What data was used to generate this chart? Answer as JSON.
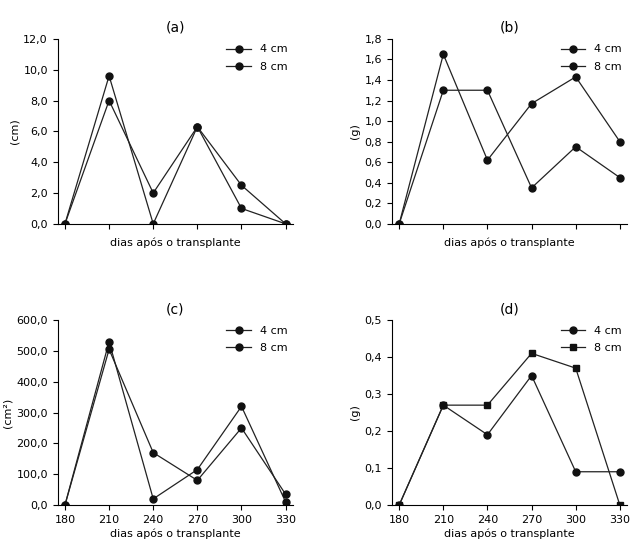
{
  "x_ticks": [
    180,
    210,
    240,
    270,
    300,
    330
  ],
  "subplot_a": {
    "title": "(a)",
    "ylabel": "(cm)",
    "xlabel": "dias após o transplante",
    "show_xticklabels": false,
    "series": [
      {
        "label": "4 cm",
        "x": [
          180,
          210,
          240,
          270,
          300,
          330
        ],
        "y": [
          0.0,
          9.6,
          0.0,
          6.3,
          1.0,
          0.0
        ],
        "marker": "o"
      },
      {
        "label": "8 cm",
        "x": [
          180,
          210,
          240,
          270,
          300,
          330
        ],
        "y": [
          0.0,
          8.0,
          2.0,
          6.3,
          2.5,
          0.0
        ],
        "marker": "o"
      }
    ],
    "ylim": [
      0.0,
      12.0
    ],
    "yticks": [
      0.0,
      2.0,
      4.0,
      6.0,
      8.0,
      10.0,
      12.0
    ],
    "ydecimals": 1
  },
  "subplot_b": {
    "title": "(b)",
    "ylabel": "(g)",
    "xlabel": "dias após o transplante",
    "show_xticklabels": false,
    "series": [
      {
        "label": "4 cm",
        "x": [
          180,
          210,
          240,
          270,
          300,
          330
        ],
        "y": [
          0.0,
          1.65,
          0.62,
          1.17,
          1.43,
          0.8
        ],
        "marker": "o"
      },
      {
        "label": "8 cm",
        "x": [
          180,
          210,
          240,
          270,
          300,
          330
        ],
        "y": [
          0.0,
          1.3,
          1.3,
          0.35,
          0.75,
          0.45
        ],
        "marker": "o"
      }
    ],
    "ylim": [
      0.0,
      1.8
    ],
    "yticks": [
      0.0,
      0.2,
      0.4,
      0.6,
      0.8,
      1.0,
      1.2,
      1.4,
      1.6,
      1.8
    ],
    "ydecimals": 1
  },
  "subplot_c": {
    "title": "(c)",
    "ylabel": "(cm²)",
    "xlabel": "dias após o transplante",
    "show_xticklabels": true,
    "series": [
      {
        "label": "4 cm",
        "x": [
          180,
          210,
          240,
          270,
          300,
          330
        ],
        "y": [
          0.0,
          530.0,
          20.0,
          115.0,
          320.0,
          10.0
        ],
        "marker": "o"
      },
      {
        "label": "8 cm",
        "x": [
          180,
          210,
          240,
          270,
          300,
          330
        ],
        "y": [
          0.0,
          505.0,
          170.0,
          80.0,
          250.0,
          35.0
        ],
        "marker": "o"
      }
    ],
    "ylim": [
      0.0,
      600.0
    ],
    "yticks": [
      0.0,
      100.0,
      200.0,
      300.0,
      400.0,
      500.0,
      600.0
    ],
    "ydecimals": 1
  },
  "subplot_d": {
    "title": "(d)",
    "ylabel": "(g)",
    "xlabel": "dias após o transplante",
    "show_xticklabels": true,
    "series": [
      {
        "label": "4 cm",
        "x": [
          180,
          210,
          240,
          270,
          300,
          330
        ],
        "y": [
          0.0,
          0.27,
          0.19,
          0.35,
          0.09,
          0.09
        ],
        "marker": "o"
      },
      {
        "label": "8 cm",
        "x": [
          180,
          210,
          240,
          270,
          300,
          330
        ],
        "y": [
          0.0,
          0.27,
          0.27,
          0.41,
          0.37,
          0.0
        ],
        "marker": "s"
      }
    ],
    "ylim": [
      0.0,
      0.5
    ],
    "yticks": [
      0.0,
      0.1,
      0.2,
      0.3,
      0.4,
      0.5
    ],
    "ydecimals": 1
  },
  "line_color": "#222222",
  "markersize": 5,
  "marker_color": "#111111",
  "legend_fontsize": 8,
  "axis_label_fontsize": 8,
  "title_fontsize": 10,
  "tick_fontsize": 8
}
